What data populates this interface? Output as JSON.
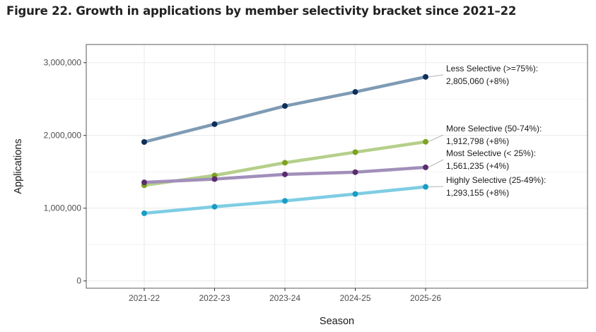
{
  "figure_title": "Figure 22. Growth in applications by member selectivity bracket since 2021–22",
  "chart_data": {
    "type": "line",
    "xlabel": "Season",
    "ylabel": "Applications",
    "categories": [
      "2021-22",
      "2022-23",
      "2023-24",
      "2024-25",
      "2025-26"
    ],
    "ylim": [
      -100000,
      3250000
    ],
    "yticks": [
      0,
      1000000,
      2000000,
      3000000
    ],
    "ytick_labels": [
      "0",
      "1,000,000",
      "2,000,000",
      "3,000,000"
    ],
    "grid": true,
    "series": [
      {
        "name": "Less Selective (>=75%)",
        "values": [
          1910000,
          2155000,
          2405000,
          2598000,
          2805060
        ],
        "line_color": "#7f9bb5",
        "point_color": "#0d2f5a",
        "annotation_line1": "Less Selective (>=75%):",
        "annotation_line2": "2,805,060 (+8%)"
      },
      {
        "name": "More Selective (50-74%)",
        "values": [
          1315000,
          1450000,
          1625000,
          1770000,
          1912798
        ],
        "line_color": "#b5cf8a",
        "point_color": "#7fa122",
        "annotation_line1": "More Selective (50-74%):",
        "annotation_line2": "1,912,798 (+8%)"
      },
      {
        "name": "Most Selective (< 25%)",
        "values": [
          1355000,
          1400000,
          1465000,
          1495000,
          1561235
        ],
        "line_color": "#a18fba",
        "point_color": "#5a2d6e",
        "annotation_line1": "Most Selective (< 25%):",
        "annotation_line2": "1,561,235 (+4%)"
      },
      {
        "name": "Highly Selective (25-49%)",
        "values": [
          930000,
          1020000,
          1100000,
          1195000,
          1293155
        ],
        "line_color": "#7ecde4",
        "point_color": "#1a9cc4",
        "annotation_line1": "Highly Selective (25-49%):",
        "annotation_line2": "1,293,155 (+8%)"
      }
    ]
  }
}
